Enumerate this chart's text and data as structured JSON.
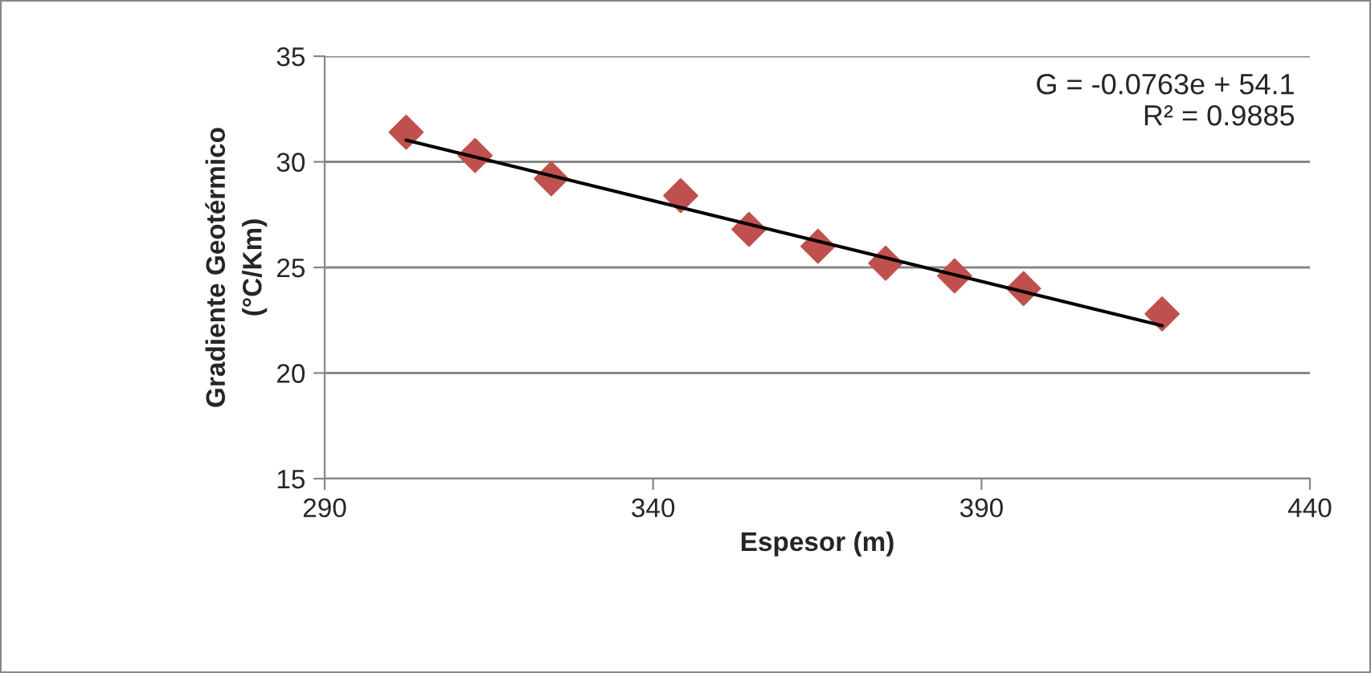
{
  "chart_data": {
    "type": "scatter",
    "xlabel": "Espesor (m)",
    "ylabel": "Gradiente Geotérmico\n(°C/Km)",
    "series": [
      {
        "color": "#c0504d",
        "marker": "diamond",
        "x": [
          302.4,
          312.9,
          324.5,
          344.2,
          354.6,
          365.1,
          375.4,
          385.9,
          396.4,
          417.5
        ],
        "values": [
          31.4,
          30.3,
          29.2,
          28.4,
          26.8,
          26.0,
          25.2,
          24.6,
          24.0,
          22.8
        ]
      },
      {
        "type": "line",
        "color": "#000000",
        "marker": "none",
        "x": [
          302.4,
          417.5
        ],
        "values": [
          31.03,
          22.24
        ]
      }
    ],
    "annotations": [
      "G = -0.0763e + 54.1\nR² = 0.9885"
    ],
    "xlim": [
      290,
      440
    ],
    "xticks": [
      290,
      340,
      390,
      440
    ],
    "ylim": [
      15,
      35
    ],
    "yticks": [
      15,
      20,
      25,
      30,
      35
    ],
    "grid": "y",
    "legend": false
  }
}
